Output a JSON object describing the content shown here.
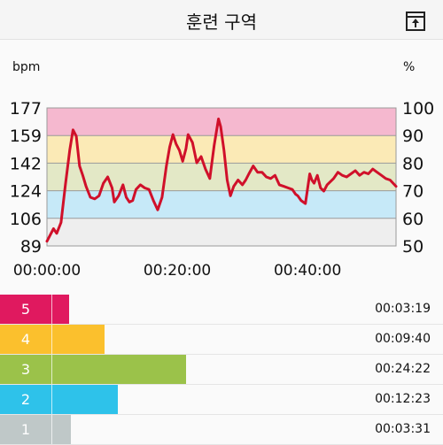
{
  "header": {
    "title": "훈련 구역",
    "menu_icon": "upload-icon"
  },
  "chart_data": {
    "type": "line",
    "left_unit": "bpm",
    "right_unit": "%",
    "left_ticks": [
      "177",
      "159",
      "142",
      "124",
      "106",
      "89"
    ],
    "right_ticks": [
      "100",
      "90",
      "80",
      "70",
      "60",
      "50"
    ],
    "ylim_bpm": [
      89,
      177
    ],
    "x_tick_labels": [
      "00:00:00",
      "00:20:00",
      "00:40:00"
    ],
    "x_tick_seconds": [
      0,
      1200,
      2400
    ],
    "x_max_seconds": 3215,
    "zone_bands": [
      {
        "zone": 5,
        "from_pct": 90,
        "to_pct": 100,
        "color": "#f5b8cf"
      },
      {
        "zone": 4,
        "from_pct": 80,
        "to_pct": 90,
        "color": "#fbeab6"
      },
      {
        "zone": 3,
        "from_pct": 70,
        "to_pct": 80,
        "color": "#e3e8c6"
      },
      {
        "zone": 2,
        "from_pct": 60,
        "to_pct": 70,
        "color": "#c6e9f8"
      },
      {
        "zone": 1,
        "from_pct": 50,
        "to_pct": 60,
        "color": "#eeeeee"
      }
    ],
    "line_color": "#d0102a",
    "series": [
      {
        "x": [
          0,
          30,
          60,
          90,
          130,
          170,
          210,
          240,
          270,
          300,
          330,
          360,
          400,
          440,
          480,
          520,
          560,
          600,
          620,
          660,
          700,
          730,
          760,
          790,
          820,
          860,
          900,
          940,
          980,
          1020,
          1060,
          1100,
          1130,
          1160,
          1190,
          1220,
          1250,
          1280,
          1300,
          1340,
          1380,
          1420,
          1460,
          1500,
          1540,
          1580,
          1600,
          1630,
          1660,
          1690,
          1720,
          1760,
          1800,
          1830,
          1860,
          1900,
          1940,
          1980,
          2020,
          2060,
          2100,
          2140,
          2180,
          2220,
          2260,
          2290,
          2310,
          2340,
          2380,
          2420,
          2440,
          2460,
          2490,
          2520,
          2550,
          2580,
          2610,
          2640,
          2680,
          2720,
          2760,
          2800,
          2840,
          2880,
          2920,
          2960,
          3000,
          3040,
          3080,
          3120,
          3160,
          3215
        ],
        "y": [
          92,
          96,
          100,
          97,
          104,
          128,
          150,
          163,
          159,
          140,
          134,
          127,
          120,
          119,
          121,
          129,
          133,
          126,
          117,
          121,
          128,
          120,
          117,
          118,
          125,
          128,
          126,
          125,
          118,
          112,
          120,
          140,
          152,
          160,
          154,
          150,
          143,
          151,
          160,
          155,
          142,
          146,
          138,
          132,
          153,
          170,
          165,
          150,
          131,
          121,
          127,
          131,
          128,
          131,
          135,
          140,
          136,
          136,
          133,
          132,
          134,
          128,
          127,
          126,
          125,
          122,
          121,
          118,
          116,
          135,
          131,
          129,
          134,
          126,
          124,
          128,
          130,
          132,
          136,
          134,
          133,
          135,
          137,
          134,
          136,
          135,
          138,
          136,
          134,
          132,
          131,
          127
        ]
      }
    ]
  },
  "zones": [
    {
      "num": "5",
      "time": "00:03:19",
      "color": "#e0195f",
      "fraction": 0.155
    },
    {
      "num": "4",
      "time": "00:09:40",
      "color": "#fbc02d",
      "fraction": 0.235
    },
    {
      "num": "3",
      "time": "00:24:22",
      "color": "#9bc24a",
      "fraction": 0.42
    },
    {
      "num": "2",
      "time": "00:12:23",
      "color": "#2ec2ea",
      "fraction": 0.266
    },
    {
      "num": "1",
      "time": "00:03:31",
      "color": "#bfc8c8",
      "fraction": 0.16
    }
  ]
}
